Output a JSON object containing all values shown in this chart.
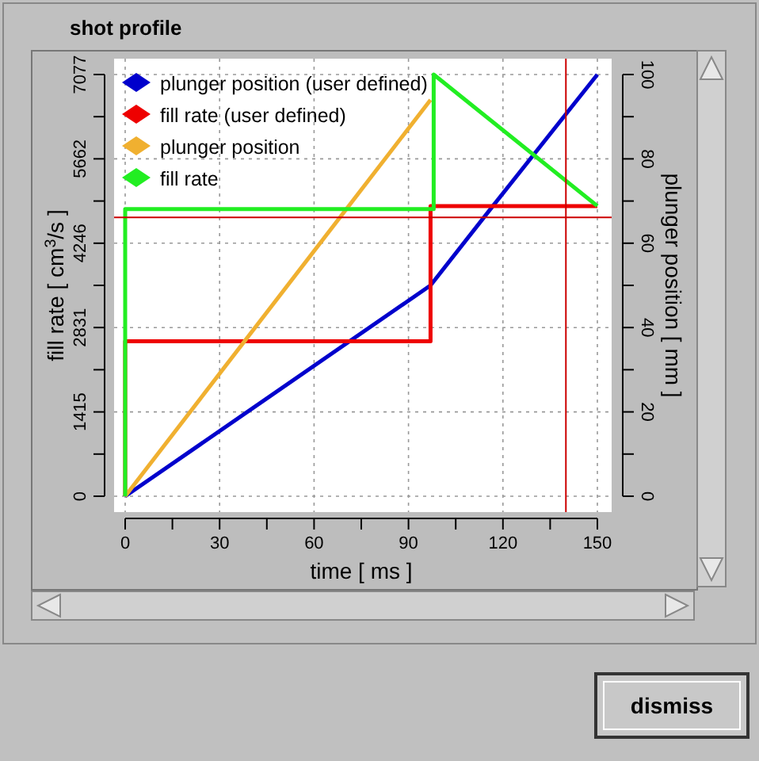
{
  "chart_data": {
    "type": "line",
    "title": "shot profile",
    "xlabel": "time [ ms ]",
    "ylabel": "fill rate [ cm$^{3}$/s ]",
    "y2label": "plunger position [ mm ]",
    "xlim": [
      0,
      150
    ],
    "xticks": [
      0,
      30,
      60,
      90,
      120,
      150
    ],
    "ylim": [
      0,
      7077
    ],
    "yticks": [
      0,
      1415,
      2831,
      4246,
      5662,
      7077
    ],
    "y2lim": [
      0,
      100
    ],
    "y2ticks": [
      0,
      20,
      40,
      60,
      80,
      100
    ],
    "grid": true,
    "legend": "top left",
    "line_style": "solid",
    "series": [
      {
        "name": "plunger position (user defined)",
        "color": "#0000cc",
        "axis": "y2",
        "x": [
          0,
          97,
          117,
          150
        ],
        "values": [
          0,
          50,
          69,
          100
        ]
      },
      {
        "name": "fill rate (user defined)",
        "color": "#ee0000",
        "x": [
          0,
          0,
          97,
          97,
          150
        ],
        "values": [
          0,
          2600,
          2600,
          4870,
          4870
        ]
      },
      {
        "name": "plunger position",
        "color": "#f0b030",
        "axis": "y2",
        "x": [
          0,
          97
        ],
        "values": [
          0,
          94
        ]
      },
      {
        "name": "fill rate",
        "color": "#22ee22",
        "x": [
          0,
          0,
          98,
          98,
          150
        ],
        "values": [
          0,
          4820,
          4820,
          7077,
          4870
        ]
      }
    ],
    "ref_lines": [
      {
        "axis": "y",
        "value": 4680,
        "color": "#cc0000"
      },
      {
        "axis": "x",
        "value": 140,
        "color": "#cc0000"
      }
    ],
    "annotations": [
      "dismiss"
    ]
  }
}
